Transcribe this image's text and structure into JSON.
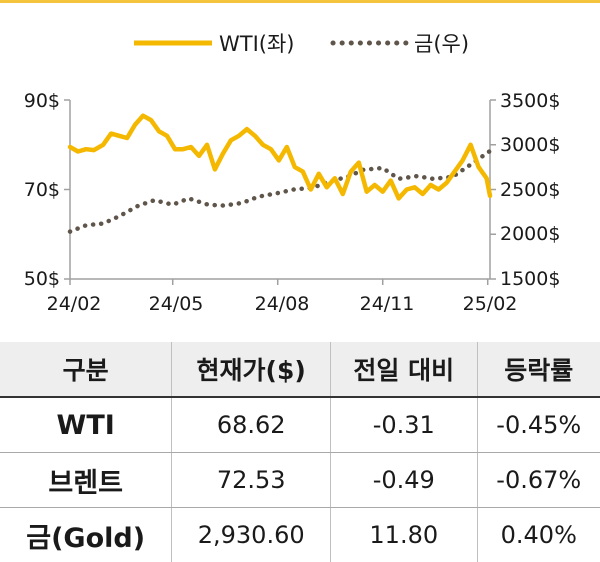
{
  "chart_data": {
    "type": "line",
    "x_ticks": [
      "24/02",
      "24/05",
      "24/08",
      "24/11",
      "25/02"
    ],
    "y_left": {
      "ticks": [
        "90$",
        "70$",
        "50$"
      ],
      "range": [
        50,
        90
      ]
    },
    "y_right": {
      "ticks": [
        "3500$",
        "3000$",
        "2500$",
        "2000$",
        "1500$"
      ],
      "range": [
        1500,
        3500
      ]
    },
    "legend_position": "top",
    "series": [
      {
        "name": "WTI(좌)",
        "axis": "left",
        "style": "solid",
        "color": "#f5b800",
        "x": [
          "2024-02-01",
          "2024-02-08",
          "2024-02-15",
          "2024-02-22",
          "2024-03-01",
          "2024-03-08",
          "2024-03-15",
          "2024-03-22",
          "2024-03-29",
          "2024-04-05",
          "2024-04-12",
          "2024-04-19",
          "2024-04-26",
          "2024-05-03",
          "2024-05-10",
          "2024-05-17",
          "2024-05-24",
          "2024-05-31",
          "2024-06-07",
          "2024-06-14",
          "2024-06-21",
          "2024-06-28",
          "2024-07-05",
          "2024-07-12",
          "2024-07-19",
          "2024-07-26",
          "2024-08-02",
          "2024-08-09",
          "2024-08-16",
          "2024-08-23",
          "2024-08-30",
          "2024-09-06",
          "2024-09-13",
          "2024-09-20",
          "2024-09-27",
          "2024-10-04",
          "2024-10-11",
          "2024-10-18",
          "2024-10-25",
          "2024-11-01",
          "2024-11-08",
          "2024-11-15",
          "2024-11-22",
          "2024-11-29",
          "2024-12-06",
          "2024-12-13",
          "2024-12-20",
          "2024-12-27",
          "2025-01-03",
          "2025-01-10",
          "2025-01-17",
          "2025-01-24",
          "2025-01-31",
          "2025-02-03"
        ],
        "values": [
          79.5,
          78.5,
          79.0,
          78.8,
          80.0,
          82.5,
          82.0,
          81.5,
          84.5,
          86.5,
          85.5,
          83.0,
          82.0,
          79.0,
          79.0,
          79.5,
          77.5,
          80.0,
          74.5,
          78.0,
          81.0,
          82.0,
          83.5,
          82.0,
          80.0,
          79.0,
          76.5,
          79.5,
          75.0,
          74.0,
          70.0,
          73.5,
          70.5,
          72.5,
          69.0,
          74.0,
          76.0,
          69.5,
          71.0,
          69.5,
          72.0,
          68.0,
          70.0,
          70.5,
          69.0,
          71.0,
          70.0,
          71.5,
          74.0,
          76.5,
          80.0,
          75.0,
          72.5,
          68.6
        ]
      },
      {
        "name": "금(우)",
        "axis": "right",
        "style": "dotted",
        "color": "#5f554a",
        "x": [
          "2024-02-01",
          "2024-02-15",
          "2024-03-01",
          "2024-03-15",
          "2024-04-01",
          "2024-04-15",
          "2024-05-01",
          "2024-05-15",
          "2024-06-01",
          "2024-06-15",
          "2024-07-01",
          "2024-07-15",
          "2024-08-01",
          "2024-08-15",
          "2024-09-01",
          "2024-09-15",
          "2024-10-01",
          "2024-10-15",
          "2024-11-01",
          "2024-11-15",
          "2024-12-01",
          "2024-12-15",
          "2025-01-01",
          "2025-01-15",
          "2025-02-03"
        ],
        "values": [
          2030,
          2100,
          2120,
          2200,
          2320,
          2380,
          2330,
          2400,
          2330,
          2320,
          2350,
          2420,
          2460,
          2500,
          2520,
          2590,
          2640,
          2720,
          2740,
          2620,
          2650,
          2620,
          2640,
          2760,
          2930
        ]
      }
    ]
  },
  "table": {
    "headers": [
      "구분",
      "현재가($)",
      "전일 대비",
      "등락률"
    ],
    "rows": [
      {
        "name": "WTI",
        "price": "68.62",
        "change": "-0.31",
        "rate": "-0.45%"
      },
      {
        "name": "브렌트",
        "price": "72.53",
        "change": "-0.49",
        "rate": "-0.67%"
      },
      {
        "name": "금(Gold)",
        "price": "2,930.60",
        "change": "11.80",
        "rate": "0.40%"
      }
    ]
  }
}
